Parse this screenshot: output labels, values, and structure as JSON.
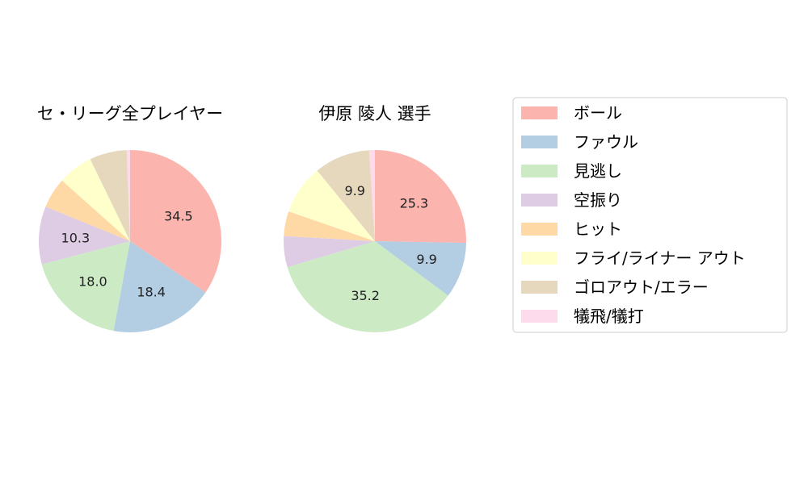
{
  "chart_data": {
    "type": "pie",
    "categories": [
      "ボール",
      "ファウル",
      "見逃し",
      "空振り",
      "ヒット",
      "フライ/ライナー アウト",
      "ゴロアウト/エラー",
      "犠飛/犠打"
    ],
    "colors": [
      "#fbb4ae",
      "#b3cde3",
      "#ccebc5",
      "#decbe4",
      "#fed9a6",
      "#ffffcc",
      "#e5d8bd",
      "#fddaec"
    ],
    "legend_position": "right",
    "charts": [
      {
        "title": "セ・リーグ全プレイヤー",
        "values": [
          34.5,
          18.4,
          18.0,
          10.3,
          5.4,
          6.2,
          6.6,
          0.6
        ],
        "labels": [
          "34.5",
          "18.4",
          "18.0",
          "10.3",
          "",
          "",
          "",
          ""
        ]
      },
      {
        "title": "伊原 陵人  選手",
        "values": [
          25.3,
          9.9,
          35.2,
          5.5,
          4.4,
          8.8,
          9.9,
          1.0
        ],
        "labels": [
          "25.3",
          "9.9",
          "35.2",
          "",
          "",
          "",
          "9.9",
          ""
        ]
      }
    ]
  }
}
